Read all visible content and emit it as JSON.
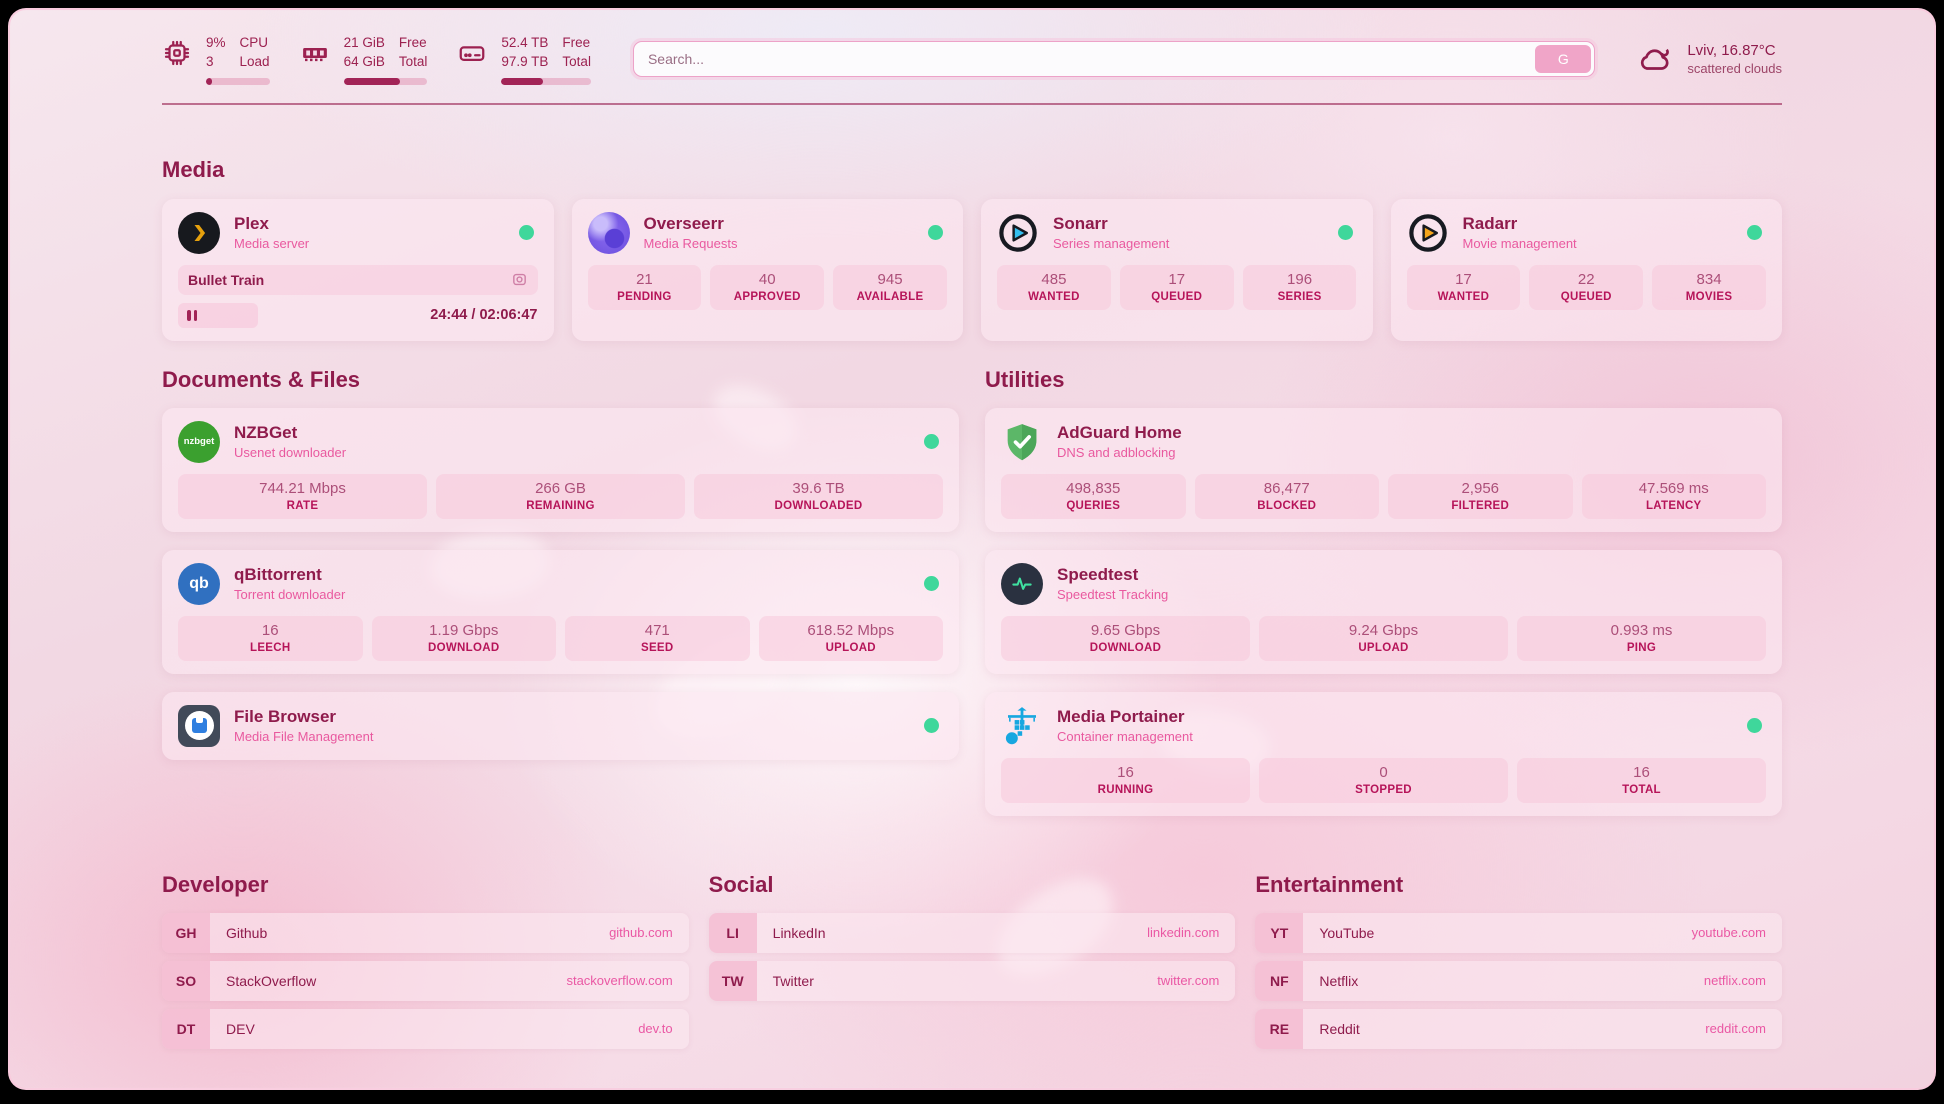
{
  "header": {
    "cpu": {
      "value": "9%",
      "cores": "3",
      "label_top": "CPU",
      "label_bottom": "Load",
      "progress": 10
    },
    "memory": {
      "free": "21 GiB",
      "total": "64 GiB",
      "label_top": "Free",
      "label_bottom": "Total",
      "progress": 67
    },
    "disk": {
      "free": "52.4 TB",
      "total": "97.9 TB",
      "label_top": "Free",
      "label_bottom": "Total",
      "progress": 46
    },
    "search": {
      "placeholder": "Search...",
      "button_label": "G"
    },
    "weather": {
      "location": "Lviv, 16.87°C",
      "condition": "scattered clouds"
    }
  },
  "sections": {
    "media": {
      "title": "Media",
      "plex": {
        "name": "Plex",
        "desc": "Media server",
        "now_playing": "Bullet Train",
        "time": "24:44 / 02:06:47"
      },
      "overseerr": {
        "name": "Overseerr",
        "desc": "Media Requests",
        "stats": [
          {
            "value": "21",
            "label": "PENDING"
          },
          {
            "value": "40",
            "label": "APPROVED"
          },
          {
            "value": "945",
            "label": "AVAILABLE"
          }
        ]
      },
      "sonarr": {
        "name": "Sonarr",
        "desc": "Series management",
        "stats": [
          {
            "value": "485",
            "label": "WANTED"
          },
          {
            "value": "17",
            "label": "QUEUED"
          },
          {
            "value": "196",
            "label": "SERIES"
          }
        ]
      },
      "radarr": {
        "name": "Radarr",
        "desc": "Movie management",
        "stats": [
          {
            "value": "17",
            "label": "WANTED"
          },
          {
            "value": "22",
            "label": "QUEUED"
          },
          {
            "value": "834",
            "label": "MOVIES"
          }
        ]
      }
    },
    "documents": {
      "title": "Documents & Files",
      "nzbget": {
        "name": "NZBGet",
        "desc": "Usenet downloader",
        "icon_text": "nzbget",
        "stats": [
          {
            "value": "744.21 Mbps",
            "label": "RATE"
          },
          {
            "value": "266 GB",
            "label": "REMAINING"
          },
          {
            "value": "39.6 TB",
            "label": "DOWNLOADED"
          }
        ]
      },
      "qbittorrent": {
        "name": "qBittorrent",
        "desc": "Torrent downloader",
        "icon_text": "qb",
        "stats": [
          {
            "value": "16",
            "label": "LEECH"
          },
          {
            "value": "1.19 Gbps",
            "label": "DOWNLOAD"
          },
          {
            "value": "471",
            "label": "SEED"
          },
          {
            "value": "618.52 Mbps",
            "label": "UPLOAD"
          }
        ]
      },
      "filebrowser": {
        "name": "File Browser",
        "desc": "Media File Management"
      }
    },
    "utilities": {
      "title": "Utilities",
      "adguard": {
        "name": "AdGuard Home",
        "desc": "DNS and adblocking",
        "stats": [
          {
            "value": "498,835",
            "label": "QUERIES"
          },
          {
            "value": "86,477",
            "label": "BLOCKED"
          },
          {
            "value": "2,956",
            "label": "FILTERED"
          },
          {
            "value": "47.569 ms",
            "label": "LATENCY"
          }
        ]
      },
      "speedtest": {
        "name": "Speedtest",
        "desc": "Speedtest Tracking",
        "stats": [
          {
            "value": "9.65 Gbps",
            "label": "DOWNLOAD"
          },
          {
            "value": "9.24 Gbps",
            "label": "UPLOAD"
          },
          {
            "value": "0.993 ms",
            "label": "PING"
          }
        ]
      },
      "portainer": {
        "name": "Media Portainer",
        "desc": "Container management",
        "stats": [
          {
            "value": "16",
            "label": "RUNNING"
          },
          {
            "value": "0",
            "label": "STOPPED"
          },
          {
            "value": "16",
            "label": "TOTAL"
          }
        ]
      }
    },
    "developer": {
      "title": "Developer",
      "items": [
        {
          "tag": "GH",
          "label": "Github",
          "url": "github.com"
        },
        {
          "tag": "SO",
          "label": "StackOverflow",
          "url": "stackoverflow.com"
        },
        {
          "tag": "DT",
          "label": "DEV",
          "url": "dev.to"
        }
      ]
    },
    "social": {
      "title": "Social",
      "items": [
        {
          "tag": "LI",
          "label": "LinkedIn",
          "url": "linkedin.com"
        },
        {
          "tag": "TW",
          "label": "Twitter",
          "url": "twitter.com"
        }
      ]
    },
    "entertainment": {
      "title": "Entertainment",
      "items": [
        {
          "tag": "YT",
          "label": "YouTube",
          "url": "youtube.com"
        },
        {
          "tag": "NF",
          "label": "Netflix",
          "url": "netflix.com"
        },
        {
          "tag": "RE",
          "label": "Reddit",
          "url": "reddit.com"
        }
      ]
    }
  },
  "colors": {
    "status_online": "#3fd79b",
    "heading": "#8f1b4c",
    "accent_pink": "#ea58a4",
    "progress_fill": "#a22457"
  }
}
